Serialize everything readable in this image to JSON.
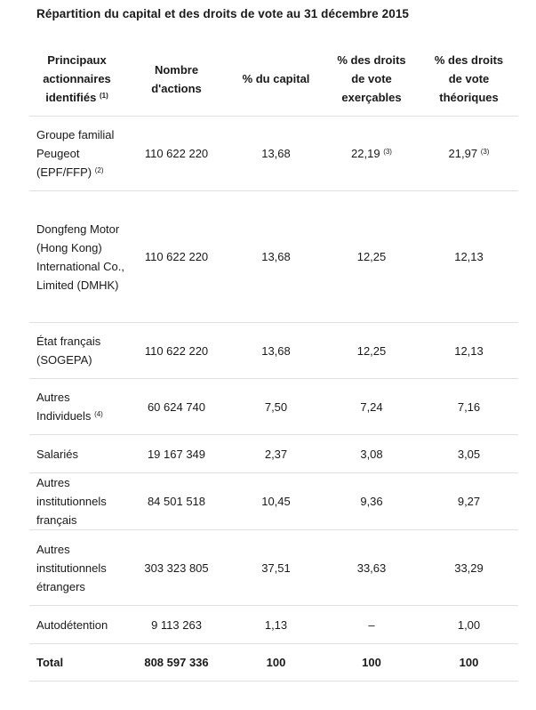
{
  "title": "Répartition du capital et des droits de vote au 31 décembre 2015",
  "headers": [
    {
      "label": "Principaux actionnaires identifiés",
      "sup": "(1)"
    },
    {
      "label": "Nombre d'actions",
      "sup": ""
    },
    {
      "label": "% du capital",
      "sup": ""
    },
    {
      "label": "% des droits de vote exerçables",
      "sup": ""
    },
    {
      "label": "% des droits de vote théoriques",
      "sup": ""
    }
  ],
  "rows": [
    {
      "name": "Groupe familial Peugeot (EPF/FFP)",
      "name_sup": "(2)",
      "actions": "110 622 220",
      "capital": "13,68",
      "exercables": "22,19",
      "exercables_sup": "(3)",
      "theoriques": "21,97",
      "theoriques_sup": "(3)"
    },
    {
      "name": "Dongfeng Motor (Hong Kong) International Co., Limited (DMHK)",
      "name_sup": "",
      "actions": "110 622 220",
      "capital": "13,68",
      "exercables": "12,25",
      "exercables_sup": "",
      "theoriques": "12,13",
      "theoriques_sup": ""
    },
    {
      "name": "État français (SOGEPA)",
      "name_sup": "",
      "actions": "110 622 220",
      "capital": "13,68",
      "exercables": "12,25",
      "exercables_sup": "",
      "theoriques": "12,13",
      "theoriques_sup": ""
    },
    {
      "name": "Autres Individuels",
      "name_sup": "(4)",
      "actions": "60 624 740",
      "capital": "7,50",
      "exercables": "7,24",
      "exercables_sup": "",
      "theoriques": "7,16",
      "theoriques_sup": ""
    },
    {
      "name": "Salariés",
      "name_sup": "",
      "actions": "19 167 349",
      "capital": "2,37",
      "exercables": "3,08",
      "exercables_sup": "",
      "theoriques": "3,05",
      "theoriques_sup": ""
    },
    {
      "name": "Autres institutionnels français",
      "name_sup": "",
      "actions": "84 501 518",
      "capital": "10,45",
      "exercables": "9,36",
      "exercables_sup": "",
      "theoriques": "9,27",
      "theoriques_sup": ""
    },
    {
      "name": "Autres institutionnels étrangers",
      "name_sup": "",
      "actions": "303 323 805",
      "capital": "37,51",
      "exercables": "33,63",
      "exercables_sup": "",
      "theoriques": "33,29",
      "theoriques_sup": ""
    },
    {
      "name": "Autodétention",
      "name_sup": "",
      "actions": "9 113 263",
      "capital": "1,13",
      "exercables": "–",
      "exercables_sup": "",
      "theoriques": "1,00",
      "theoriques_sup": ""
    }
  ],
  "total": {
    "name": "Total",
    "actions": "808 597 336",
    "capital": "100",
    "exercables": "100",
    "theoriques": "100"
  }
}
